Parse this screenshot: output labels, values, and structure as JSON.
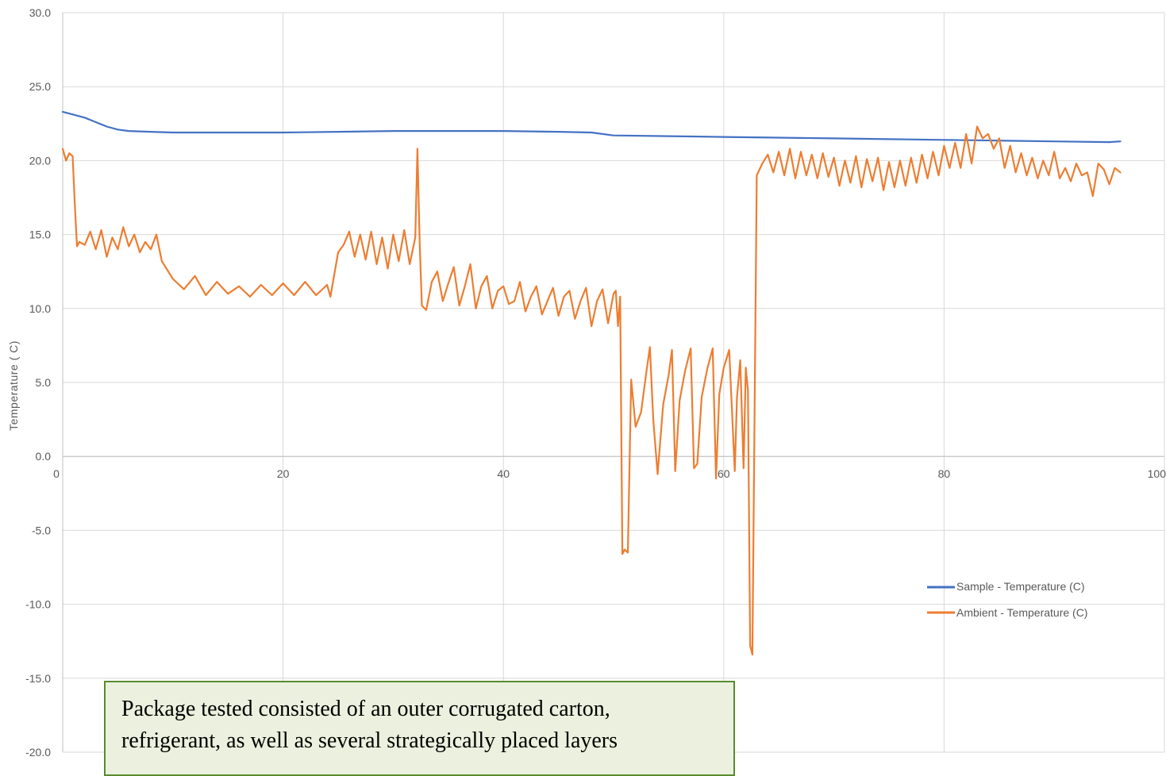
{
  "chart_data": {
    "type": "line",
    "title": "",
    "xlabel": "",
    "ylabel": "Temperature ( C)",
    "xlim": [
      0,
      100
    ],
    "ylim": [
      -20,
      30
    ],
    "x_ticks": [
      "0",
      "20",
      "40",
      "60",
      "80",
      "100"
    ],
    "y_ticks": [
      "30.0",
      "25.0",
      "20.0",
      "15.0",
      "10.0",
      "5.0",
      "0.0",
      "-5.0",
      "-10.0",
      "-15.0",
      "-20.0"
    ],
    "grid": true,
    "legend_position": "right",
    "series": [
      {
        "name": "Sample - Temperature (C)",
        "color": "#4472c4",
        "x": [
          0,
          1,
          2,
          3,
          4,
          5,
          6,
          8,
          10,
          15,
          20,
          25,
          30,
          35,
          40,
          45,
          48,
          50,
          55,
          60,
          65,
          70,
          75,
          80,
          85,
          90,
          95,
          96
        ],
        "y": [
          23.3,
          23.1,
          22.9,
          22.6,
          22.3,
          22.1,
          22.0,
          21.95,
          21.9,
          21.9,
          21.9,
          21.95,
          22.0,
          22.0,
          22.0,
          21.95,
          21.9,
          21.7,
          21.65,
          21.6,
          21.55,
          21.5,
          21.45,
          21.4,
          21.35,
          21.3,
          21.25,
          21.3
        ]
      },
      {
        "name": "Ambient - Temperature (C)",
        "color": "#ed7d31",
        "x": [
          0,
          0.3,
          0.6,
          0.9,
          1.1,
          1.3,
          1.5,
          2,
          2.5,
          3,
          3.5,
          4,
          4.5,
          5,
          5.5,
          6,
          6.5,
          7,
          7.5,
          8,
          8.5,
          9,
          10,
          11,
          12,
          13,
          14,
          15,
          16,
          17,
          18,
          19,
          20,
          21,
          22,
          23,
          24,
          24.3,
          25,
          25.5,
          26,
          26.5,
          27,
          27.5,
          28,
          28.5,
          29,
          29.5,
          30,
          30.5,
          31,
          31.5,
          32,
          32.2,
          32.4,
          32.6,
          33,
          33.5,
          34,
          34.5,
          35,
          35.5,
          36,
          36.5,
          37,
          37.5,
          38,
          38.5,
          39,
          39.5,
          40,
          40.5,
          41,
          41.5,
          42,
          42.5,
          43,
          43.5,
          44,
          44.5,
          45,
          45.5,
          46,
          46.5,
          47,
          47.5,
          48,
          48.5,
          49,
          49.5,
          50,
          50.2,
          50.4,
          50.6,
          50.8,
          51,
          51.3,
          51.6,
          52,
          52.5,
          53,
          53.3,
          53.6,
          54,
          54.5,
          55,
          55.3,
          55.6,
          56,
          56.5,
          57,
          57.3,
          57.6,
          58,
          58.5,
          59,
          59.3,
          59.6,
          60,
          60.5,
          61,
          61.2,
          61.5,
          61.8,
          62,
          62.2,
          62.4,
          62.6,
          63,
          63.5,
          64,
          64.5,
          65,
          65.5,
          66,
          66.5,
          67,
          67.5,
          68,
          68.5,
          69,
          69.5,
          70,
          70.5,
          71,
          71.5,
          72,
          72.5,
          73,
          73.5,
          74,
          74.5,
          75,
          75.5,
          76,
          76.5,
          77,
          77.5,
          78,
          78.5,
          79,
          79.5,
          80,
          80.5,
          81,
          81.5,
          82,
          82.5,
          83,
          83.5,
          84,
          84.5,
          85,
          85.5,
          86,
          86.5,
          87,
          87.5,
          88,
          88.5,
          89,
          89.5,
          90,
          90.5,
          91,
          91.5,
          92,
          92.5,
          93,
          93.5,
          94,
          94.5,
          95,
          95.5,
          96
        ],
        "y": [
          20.8,
          20.0,
          20.5,
          20.3,
          17.0,
          14.2,
          14.5,
          14.3,
          15.2,
          14.0,
          15.3,
          13.5,
          14.8,
          14.0,
          15.5,
          14.2,
          15.0,
          13.8,
          14.5,
          14.0,
          15.0,
          13.2,
          12.0,
          11.3,
          12.2,
          10.9,
          11.8,
          11.0,
          11.5,
          10.8,
          11.6,
          10.9,
          11.7,
          10.9,
          11.8,
          10.9,
          11.6,
          10.8,
          13.8,
          14.3,
          15.2,
          13.5,
          15.0,
          13.3,
          15.2,
          13.0,
          14.8,
          12.7,
          15.0,
          13.2,
          15.3,
          13.0,
          14.8,
          20.8,
          14.5,
          10.2,
          9.9,
          11.8,
          12.5,
          10.5,
          11.7,
          12.8,
          10.2,
          11.5,
          13.0,
          10.0,
          11.5,
          12.2,
          10.0,
          11.2,
          11.5,
          10.3,
          10.5,
          11.8,
          9.8,
          10.8,
          11.5,
          9.6,
          10.5,
          11.4,
          9.5,
          10.8,
          11.2,
          9.3,
          10.5,
          11.4,
          8.8,
          10.5,
          11.3,
          9.0,
          11.0,
          11.2,
          8.8,
          10.8,
          -6.6,
          -6.3,
          -6.5,
          5.2,
          2.0,
          3.0,
          5.8,
          7.4,
          2.5,
          -1.2,
          3.5,
          5.5,
          7.2,
          -1.0,
          3.8,
          5.8,
          7.3,
          -0.8,
          -0.5,
          4.0,
          5.9,
          7.3,
          -1.5,
          4.2,
          6.0,
          7.2,
          -1.0,
          4.0,
          6.5,
          -0.8,
          6.0,
          4.5,
          -12.8,
          -13.4,
          19.0,
          19.8,
          20.4,
          19.2,
          20.6,
          19.0,
          20.8,
          18.8,
          20.6,
          19.0,
          20.4,
          18.8,
          20.5,
          18.9,
          20.2,
          18.3,
          20.0,
          18.5,
          20.3,
          18.2,
          20.1,
          18.6,
          20.2,
          18.0,
          19.9,
          18.2,
          20.0,
          18.3,
          20.2,
          18.5,
          20.4,
          18.8,
          20.6,
          19.0,
          21.0,
          19.5,
          21.2,
          19.5,
          21.8,
          19.8,
          22.3,
          21.5,
          21.8,
          20.8,
          21.5,
          19.5,
          21.0,
          19.2,
          20.5,
          19.0,
          20.2,
          18.8,
          20.0,
          19.0,
          20.6,
          18.8,
          19.5,
          18.6,
          19.8,
          19.0,
          19.2,
          17.6,
          19.8,
          19.4,
          18.4,
          19.5,
          19.2
        ]
      }
    ],
    "annotations": []
  },
  "note": {
    "line1": "Package tested consisted of an outer corrugated carton,",
    "line2": "refrigerant, as well as several strategically placed layers"
  }
}
